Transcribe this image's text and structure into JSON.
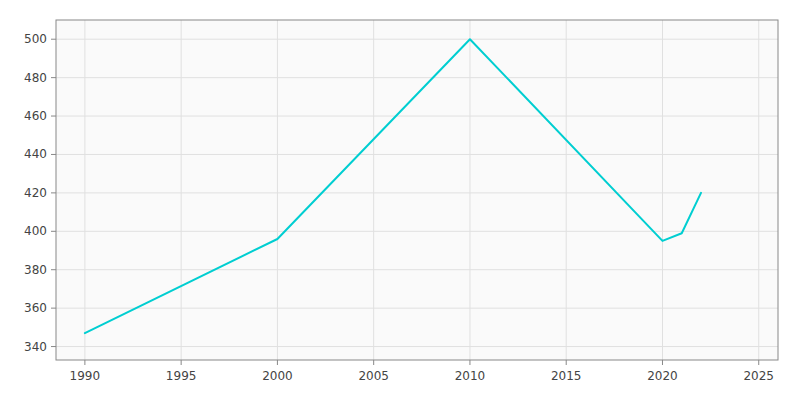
{
  "chart_data": {
    "type": "line",
    "x": [
      1990,
      2000,
      2010,
      2020,
      2021,
      2022
    ],
    "values": [
      347,
      396,
      500,
      395,
      399,
      420
    ],
    "color": "#00CED1",
    "xlim": [
      1988.5,
      2026
    ],
    "ylim": [
      333,
      510
    ],
    "xticks": [
      1990,
      1995,
      2000,
      2005,
      2010,
      2015,
      2020,
      2025
    ],
    "yticks": [
      340,
      360,
      380,
      400,
      420,
      440,
      460,
      480,
      500
    ],
    "grid": true
  }
}
